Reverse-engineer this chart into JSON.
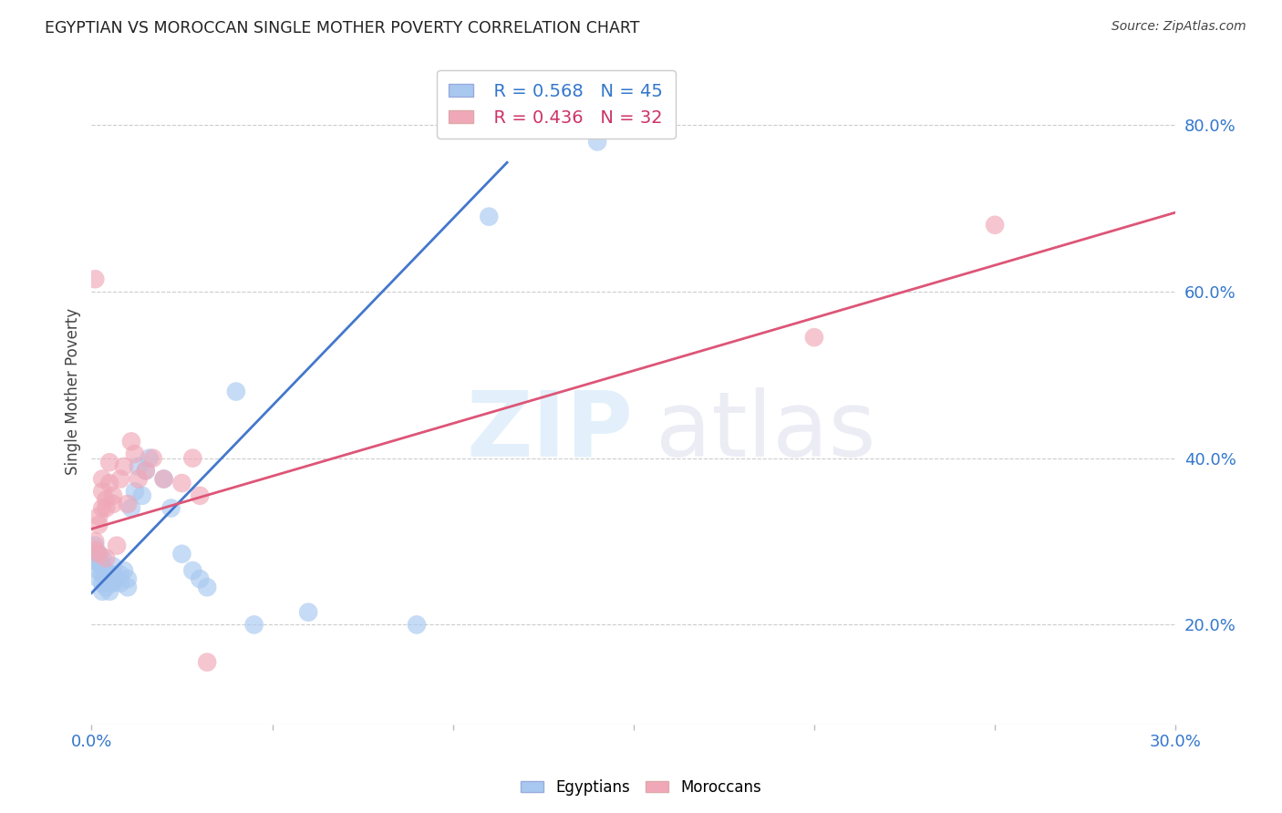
{
  "title": "EGYPTIAN VS MOROCCAN SINGLE MOTHER POVERTY CORRELATION CHART",
  "source": "Source: ZipAtlas.com",
  "ylabel": "Single Mother Poverty",
  "xlim": [
    0.0,
    0.3
  ],
  "ylim": [
    0.08,
    0.88
  ],
  "y_ticks_right": [
    0.2,
    0.4,
    0.6,
    0.8
  ],
  "y_tick_labels_right": [
    "20.0%",
    "40.0%",
    "60.0%",
    "80.0%"
  ],
  "blue_color": "#a8c8f0",
  "pink_color": "#f0a8b8",
  "blue_line_color": "#4477cc",
  "pink_line_color": "#dd5577",
  "egyptians_x": [
    0.001,
    0.001,
    0.001,
    0.002,
    0.002,
    0.002,
    0.002,
    0.003,
    0.003,
    0.003,
    0.003,
    0.003,
    0.004,
    0.004,
    0.004,
    0.005,
    0.005,
    0.005,
    0.006,
    0.006,
    0.006,
    0.007,
    0.008,
    0.008,
    0.009,
    0.01,
    0.01,
    0.011,
    0.012,
    0.013,
    0.014,
    0.015,
    0.016,
    0.02,
    0.022,
    0.025,
    0.028,
    0.03,
    0.032,
    0.04,
    0.045,
    0.06,
    0.09,
    0.11,
    0.14
  ],
  "egyptians_y": [
    0.295,
    0.285,
    0.275,
    0.285,
    0.275,
    0.265,
    0.255,
    0.28,
    0.27,
    0.26,
    0.25,
    0.24,
    0.265,
    0.255,
    0.245,
    0.26,
    0.25,
    0.24,
    0.27,
    0.26,
    0.25,
    0.255,
    0.26,
    0.25,
    0.265,
    0.255,
    0.245,
    0.34,
    0.36,
    0.39,
    0.355,
    0.385,
    0.4,
    0.375,
    0.34,
    0.285,
    0.265,
    0.255,
    0.245,
    0.48,
    0.2,
    0.215,
    0.2,
    0.69,
    0.78
  ],
  "moroccans_x": [
    0.001,
    0.001,
    0.001,
    0.002,
    0.002,
    0.002,
    0.003,
    0.003,
    0.003,
    0.004,
    0.004,
    0.004,
    0.005,
    0.005,
    0.006,
    0.006,
    0.007,
    0.008,
    0.009,
    0.01,
    0.011,
    0.012,
    0.013,
    0.015,
    0.017,
    0.02,
    0.025,
    0.028,
    0.03,
    0.032,
    0.2,
    0.25
  ],
  "moroccans_y": [
    0.3,
    0.29,
    0.615,
    0.33,
    0.32,
    0.285,
    0.375,
    0.36,
    0.34,
    0.35,
    0.34,
    0.28,
    0.395,
    0.37,
    0.355,
    0.345,
    0.295,
    0.375,
    0.39,
    0.345,
    0.42,
    0.405,
    0.375,
    0.385,
    0.4,
    0.375,
    0.37,
    0.4,
    0.355,
    0.155,
    0.545,
    0.68
  ],
  "blue_line_x": [
    0.0,
    0.115
  ],
  "blue_line_y": [
    0.238,
    0.755
  ],
  "pink_line_x": [
    0.0,
    0.3
  ],
  "pink_line_y": [
    0.315,
    0.695
  ]
}
